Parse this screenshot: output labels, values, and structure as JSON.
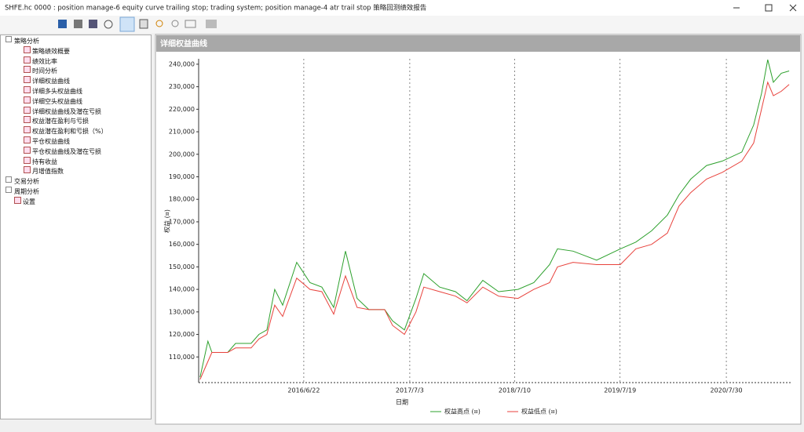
{
  "window": {
    "title": "SHFE.hc 0000 : position manage-6 equity curve trailing stop; trading system; position manage-4 atr trail stop 策略回测绩效报告"
  },
  "tree": {
    "nodes": [
      {
        "label": "策略分析",
        "children": [
          "策略绩效概要",
          "绩效比率",
          "时间分析",
          "详细权益曲线",
          "详细多头权益曲线",
          "详细空头权益曲线",
          "详细权益曲线及潜在亏损",
          "权益潜在盈利与亏损",
          "权益潜在盈利和亏损（%）",
          "平仓权益曲线",
          "平仓权益曲线及潜在亏损",
          "持有收益",
          "月增值指数"
        ]
      },
      {
        "label": "交易分析"
      },
      {
        "label": "周期分析"
      },
      {
        "label": "设置"
      }
    ]
  },
  "panel": {
    "title": "详细权益曲线"
  },
  "chart_data": {
    "type": "line",
    "x_label": "日期",
    "y_label": "权益 (¤)",
    "x": [
      "2015/6/20",
      "2015/7/18",
      "2015/8/1",
      "2015/9/26",
      "2015/10/24",
      "2015/12/18",
      "2016/1/15",
      "2016/2/12",
      "2016/3/11",
      "2016/4/8",
      "2016/5/28",
      "2016/7/14",
      "2016/8/25",
      "2016/10/6",
      "2016/11/17",
      "2016/12/28",
      "2017/2/8",
      "2017/4/5",
      "2017/5/3",
      "2017/6/14",
      "2017/7/25",
      "2017/8/22",
      "2017/10/17",
      "2017/12/12",
      "2018/1/22",
      "2018/3/19",
      "2018/5/14",
      "2018/7/22",
      "2018/9/16",
      "2018/11/11",
      "2018/12/9",
      "2019/2/2",
      "2019/4/27",
      "2019/7/20",
      "2019/9/13",
      "2019/11/8",
      "2020/1/3",
      "2020/2/13",
      "2020/3/26",
      "2020/5/21",
      "2020/7/16",
      "2020/9/23",
      "2020/11/4",
      "2020/12/2",
      "2020/12/24",
      "2021/1/13",
      "2021/2/10",
      "2021/3/10"
    ],
    "series": [
      {
        "name": "权益高点 (¤)",
        "color": "#2ca02c",
        "values": [
          101000,
          117000,
          112000,
          112000,
          116000,
          116000,
          120000,
          122000,
          140000,
          133000,
          152000,
          143000,
          141000,
          132000,
          157000,
          136000,
          131000,
          131000,
          126000,
          122000,
          136000,
          147000,
          141000,
          139000,
          135000,
          144000,
          139000,
          140000,
          143000,
          151000,
          158000,
          157000,
          153000,
          158000,
          161000,
          166000,
          173000,
          182000,
          189000,
          195000,
          197000,
          201000,
          213000,
          227000,
          242000,
          232000,
          236000,
          237000
        ]
      },
      {
        "name": "权益低点 (¤)",
        "color": "#e8423c",
        "values": [
          100000,
          108000,
          112000,
          112000,
          114000,
          114000,
          118000,
          120000,
          133000,
          128000,
          145000,
          140000,
          139000,
          129000,
          146000,
          132000,
          131000,
          131000,
          124000,
          120000,
          130000,
          141000,
          139000,
          137000,
          134000,
          141000,
          137000,
          136000,
          140000,
          143000,
          150000,
          152000,
          151000,
          151000,
          158000,
          160000,
          165000,
          177000,
          183000,
          189000,
          192000,
          197000,
          205000,
          220000,
          232000,
          226000,
          228000,
          231000
        ]
      }
    ],
    "xlim": [
      "2015/6/15",
      "2021/3/18"
    ],
    "xticks": [
      "2016/6/22",
      "2017/7/3",
      "2018/7/10",
      "2019/7/19",
      "2020/7/30"
    ],
    "ylim": [
      98600,
      242400
    ],
    "yticks": [
      {
        "value": 110000,
        "label": "110,000"
      },
      {
        "value": 120000,
        "label": "120,000"
      },
      {
        "value": 130000,
        "label": "130,000"
      },
      {
        "value": 140000,
        "label": "140,000"
      },
      {
        "value": 150000,
        "label": "150,000"
      },
      {
        "value": 160000,
        "label": "160,000"
      },
      {
        "value": 170000,
        "label": "170,000"
      },
      {
        "value": 180000,
        "label": "180,000"
      },
      {
        "value": 190000,
        "label": "190,000"
      },
      {
        "value": 200000,
        "label": "200,000"
      },
      {
        "value": 210000,
        "label": "210,000"
      },
      {
        "value": 220000,
        "label": "220,000"
      },
      {
        "value": 230000,
        "label": "230,000"
      },
      {
        "value": 240000,
        "label": "240,000"
      }
    ],
    "grid": "x"
  }
}
